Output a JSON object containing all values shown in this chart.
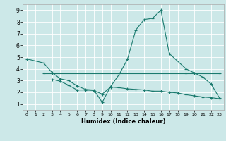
{
  "bg_color": "#cce8e8",
  "line_color": "#1a7a6e",
  "grid_color": "#ffffff",
  "xlabel": "Humidex (Indice chaleur)",
  "ylim": [
    0.5,
    9.5
  ],
  "xlim": [
    -0.5,
    23.5
  ],
  "yticks": [
    1,
    2,
    3,
    4,
    5,
    6,
    7,
    8,
    9
  ],
  "xticks": [
    0,
    1,
    2,
    3,
    4,
    5,
    6,
    7,
    8,
    9,
    10,
    11,
    12,
    13,
    14,
    15,
    16,
    17,
    18,
    19,
    20,
    21,
    22,
    23
  ],
  "line1_x": [
    0,
    2,
    3,
    4,
    5,
    6,
    7,
    8,
    9,
    10,
    11,
    12,
    13,
    14,
    15,
    16,
    17,
    19,
    20,
    21,
    22,
    23
  ],
  "line1_y": [
    4.85,
    4.5,
    3.7,
    3.15,
    3.0,
    2.55,
    2.25,
    2.2,
    1.15,
    2.5,
    3.5,
    4.8,
    7.3,
    8.2,
    8.3,
    9.0,
    5.3,
    4.0,
    3.65,
    3.3,
    2.7,
    1.5
  ],
  "line2_x": [
    2,
    3,
    19,
    20,
    23
  ],
  "line2_y": [
    3.65,
    3.65,
    3.65,
    3.65,
    3.65
  ],
  "line3_x": [
    3,
    4,
    5,
    6,
    7,
    8,
    9,
    10,
    11,
    12,
    13,
    14,
    15,
    16,
    17,
    18,
    19,
    20,
    21,
    22,
    23
  ],
  "line3_y": [
    3.1,
    2.95,
    2.6,
    2.2,
    2.2,
    2.15,
    1.85,
    2.45,
    2.4,
    2.3,
    2.25,
    2.2,
    2.1,
    2.1,
    2.0,
    1.95,
    1.8,
    1.7,
    1.6,
    1.55,
    1.45
  ]
}
